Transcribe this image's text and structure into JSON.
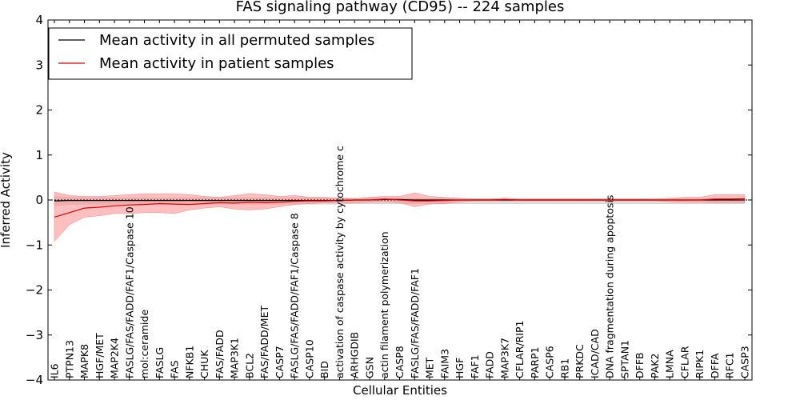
{
  "chart_data": {
    "type": "line",
    "title": "FAS signaling pathway (CD95) -- 224 samples",
    "xlabel": "Cellular Entities",
    "ylabel": "Inferred Activity",
    "ylim": [
      -4,
      4
    ],
    "yticks": [
      "4",
      "3",
      "2",
      "1",
      "0",
      "−1",
      "−2",
      "−3",
      "−4"
    ],
    "ytick_values": [
      4,
      3,
      2,
      1,
      0,
      -1,
      -2,
      -3,
      -4
    ],
    "legend_position": "top-left",
    "categories": [
      "IL6",
      "PTPN13",
      "MAPK8",
      "HGF/MET",
      "MAP2K4",
      "FASLG/FAS/FADD/FAF1/Caspase 10",
      "mol:ceramide",
      "FASLG",
      "FAS",
      "NFKB1",
      "CHUK",
      "FAS/FADD",
      "MAP3K1",
      "BCL2",
      "FAS/FADD/MET",
      "CASP7",
      "FASLG/FAS/FADD/FAF1/Caspase 8",
      "CASP10",
      "BID",
      "activation of caspase activity by cytochrome c",
      "ARHGDIB",
      "GSN",
      "actin filament polymerization",
      "CASP8",
      "FASLG/FAS/FADD/FAF1",
      "MET",
      "FAIM3",
      "HGF",
      "FAF1",
      "FADD",
      "MAP3K7",
      "CFLAR/RIP1",
      "PARP1",
      "CASP6",
      "RB1",
      "PRKDC",
      "ICAD/CAD",
      "DNA fragmentation during apoptosis",
      "SPTAN1",
      "DFFB",
      "PAK2",
      "LMNA",
      "CFLAR",
      "RIPK1",
      "DFFA",
      "RFC1",
      "CASP3"
    ],
    "series": [
      {
        "name": "Mean activity in all permuted samples",
        "color": "#000000",
        "band_color": "#bbbbbb",
        "values": [
          -0.02,
          -0.01,
          -0.01,
          -0.01,
          -0.01,
          -0.01,
          -0.01,
          -0.01,
          -0.01,
          -0.01,
          -0.01,
          -0.01,
          -0.01,
          -0.01,
          -0.01,
          -0.01,
          -0.01,
          -0.01,
          -0.01,
          -0.01,
          0.0,
          0.0,
          0.01,
          0.01,
          0.0,
          0.0,
          0.0,
          0.0,
          0.0,
          0.0,
          0.0,
          0.0,
          0.0,
          0.0,
          0.0,
          0.0,
          0.0,
          0.0,
          0.0,
          0.0,
          0.0,
          0.0,
          0.0,
          0.0,
          0.0,
          0.0,
          0.0
        ],
        "upper": [
          0.08,
          0.06,
          0.05,
          0.05,
          0.05,
          0.05,
          0.05,
          0.05,
          0.05,
          0.05,
          0.05,
          0.05,
          0.05,
          0.05,
          0.05,
          0.05,
          0.05,
          0.05,
          0.05,
          0.05,
          0.04,
          0.04,
          0.04,
          0.04,
          0.04,
          0.03,
          0.03,
          0.03,
          0.03,
          0.03,
          0.03,
          0.03,
          0.03,
          0.03,
          0.03,
          0.03,
          0.03,
          0.03,
          0.03,
          0.03,
          0.03,
          0.03,
          0.03,
          0.03,
          0.03,
          0.03,
          0.03
        ],
        "lower": [
          -0.12,
          -0.1,
          -0.09,
          -0.09,
          -0.09,
          -0.09,
          -0.09,
          -0.09,
          -0.09,
          -0.09,
          -0.09,
          -0.09,
          -0.09,
          -0.09,
          -0.09,
          -0.09,
          -0.09,
          -0.09,
          -0.09,
          -0.09,
          -0.08,
          -0.08,
          -0.08,
          -0.08,
          -0.08,
          -0.08,
          -0.08,
          -0.08,
          -0.08,
          -0.08,
          -0.08,
          -0.08,
          -0.08,
          -0.08,
          -0.08,
          -0.08,
          -0.08,
          -0.08,
          -0.08,
          -0.08,
          -0.08,
          -0.08,
          -0.08,
          -0.08,
          -0.08,
          -0.08,
          -0.08
        ]
      },
      {
        "name": "Mean activity in patient samples",
        "color": "#dd0000",
        "band_color": "#ff8080",
        "values": [
          -0.38,
          -0.28,
          -0.18,
          -0.16,
          -0.13,
          -0.11,
          -0.1,
          -0.08,
          -0.09,
          -0.1,
          -0.08,
          -0.06,
          -0.07,
          -0.05,
          -0.06,
          -0.05,
          -0.03,
          -0.02,
          -0.02,
          -0.01,
          0.0,
          0.0,
          0.02,
          0.0,
          -0.02,
          -0.02,
          -0.01,
          0.0,
          0.0,
          0.0,
          0.01,
          0.0,
          0.0,
          0.0,
          0.0,
          0.0,
          0.0,
          0.0,
          0.0,
          0.0,
          0.0,
          0.0,
          0.0,
          0.0,
          0.02,
          0.02,
          0.03
        ],
        "upper": [
          0.18,
          0.1,
          0.08,
          0.08,
          0.1,
          0.12,
          0.14,
          0.14,
          0.14,
          0.12,
          0.08,
          0.06,
          0.1,
          0.14,
          0.12,
          0.08,
          0.1,
          0.06,
          0.06,
          0.04,
          0.03,
          0.06,
          0.08,
          0.08,
          0.16,
          0.08,
          0.06,
          0.04,
          0.02,
          0.02,
          0.04,
          0.02,
          0.02,
          0.02,
          0.02,
          0.02,
          0.02,
          0.02,
          0.02,
          0.02,
          0.02,
          0.04,
          0.06,
          0.06,
          0.12,
          0.12,
          0.12
        ],
        "lower": [
          -0.92,
          -0.55,
          -0.38,
          -0.35,
          -0.3,
          -0.3,
          -0.28,
          -0.28,
          -0.3,
          -0.22,
          -0.18,
          -0.15,
          -0.2,
          -0.22,
          -0.2,
          -0.15,
          -0.1,
          -0.08,
          -0.06,
          -0.06,
          -0.06,
          -0.05,
          -0.04,
          -0.06,
          -0.15,
          -0.09,
          -0.08,
          -0.04,
          -0.02,
          -0.02,
          -0.02,
          -0.02,
          -0.02,
          -0.02,
          -0.02,
          -0.02,
          -0.02,
          -0.02,
          -0.02,
          -0.02,
          -0.02,
          -0.04,
          -0.05,
          -0.05,
          -0.06,
          -0.06,
          -0.06
        ]
      }
    ]
  }
}
